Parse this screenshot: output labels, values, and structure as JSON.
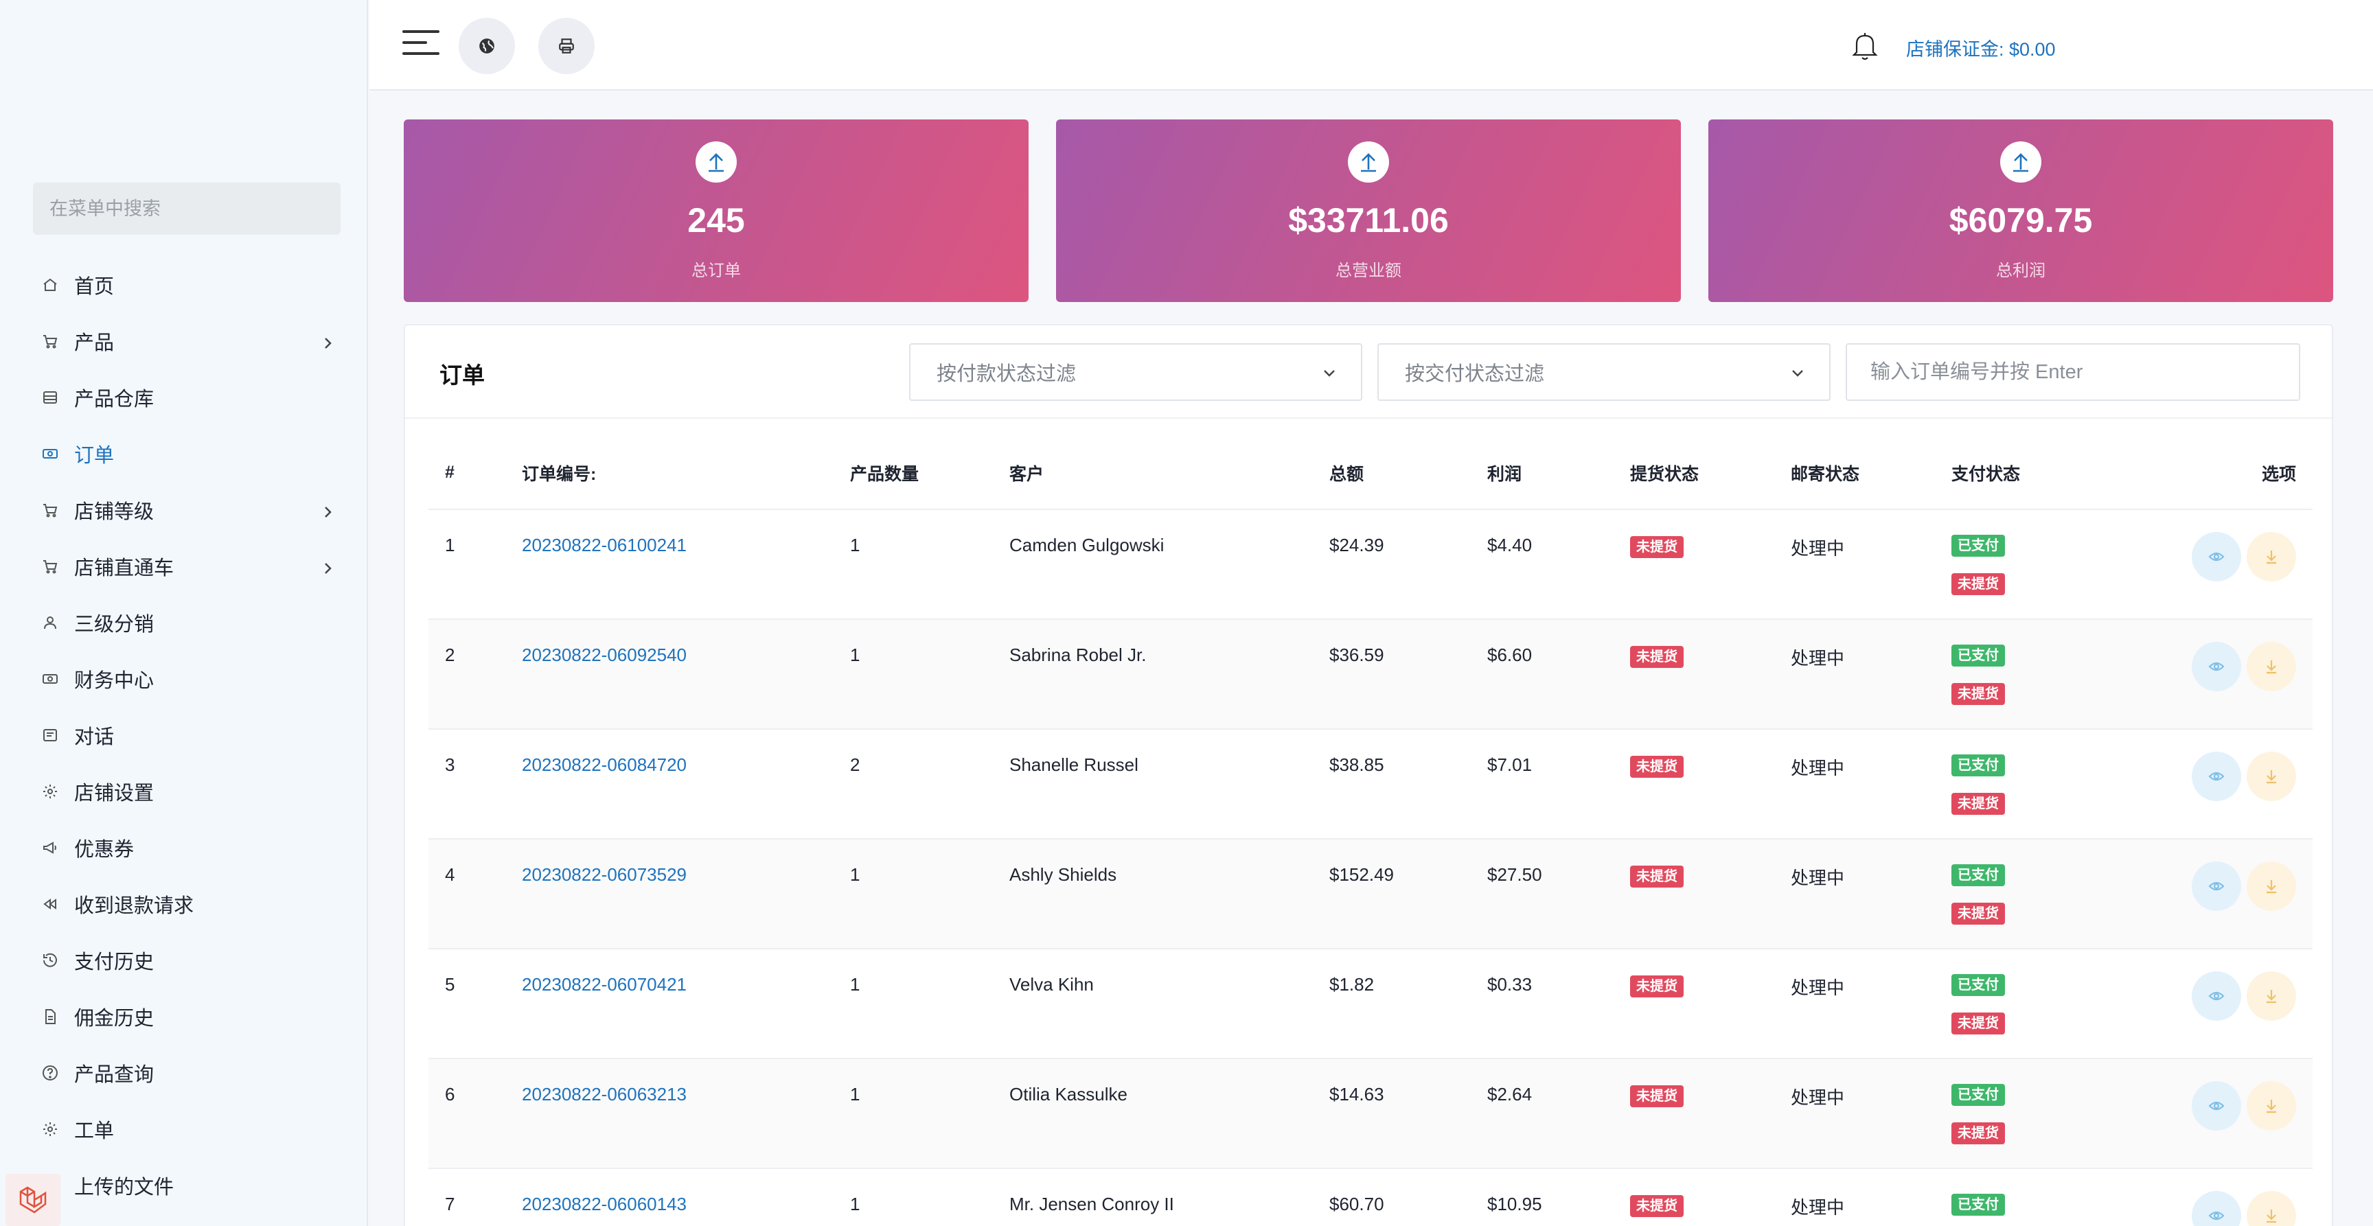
{
  "sidebar": {
    "search_placeholder": "在菜单中搜索",
    "items": [
      {
        "label": "首页",
        "icon": "home-icon",
        "active": false,
        "has_children": false
      },
      {
        "label": "产品",
        "icon": "cart-icon",
        "active": false,
        "has_children": true
      },
      {
        "label": "产品仓库",
        "icon": "warehouse-icon",
        "active": false,
        "has_children": false
      },
      {
        "label": "订单",
        "icon": "money-icon",
        "active": true,
        "has_children": false
      },
      {
        "label": "店铺等级",
        "icon": "cart-icon",
        "active": false,
        "has_children": true
      },
      {
        "label": "店铺直通车",
        "icon": "cart-icon",
        "active": false,
        "has_children": true
      },
      {
        "label": "三级分销",
        "icon": "user-icon",
        "active": false,
        "has_children": false
      },
      {
        "label": "财务中心",
        "icon": "money-icon",
        "active": false,
        "has_children": false
      },
      {
        "label": "对话",
        "icon": "chat-icon",
        "active": false,
        "has_children": false
      },
      {
        "label": "店铺设置",
        "icon": "gear-icon",
        "active": false,
        "has_children": false
      },
      {
        "label": "优惠券",
        "icon": "megaphone-icon",
        "active": false,
        "has_children": false
      },
      {
        "label": "收到退款请求",
        "icon": "rewind-icon",
        "active": false,
        "has_children": false
      },
      {
        "label": "支付历史",
        "icon": "history-icon",
        "active": false,
        "has_children": false
      },
      {
        "label": "佣金历史",
        "icon": "document-icon",
        "active": false,
        "has_children": false
      },
      {
        "label": "产品查询",
        "icon": "help-icon",
        "active": false,
        "has_children": false
      },
      {
        "label": "工单",
        "icon": "gear-icon",
        "active": false,
        "has_children": false
      },
      {
        "label": "上传的文件",
        "icon": "folder-icon",
        "active": false,
        "has_children": false
      }
    ]
  },
  "topbar": {
    "deposit_label": "店铺保证金: $0.00",
    "flag": "china-flag"
  },
  "stats": [
    {
      "value": "245",
      "label": "总订单"
    },
    {
      "value": "$33711.06",
      "label": "总营业额"
    },
    {
      "value": "$6079.75",
      "label": "总利润"
    }
  ],
  "orders": {
    "title": "订单",
    "payment_filter_placeholder": "按付款状态过滤",
    "delivery_filter_placeholder": "按交付状态过滤",
    "search_placeholder": "输入订单编号并按 Enter",
    "columns": [
      "#",
      "订单编号:",
      "产品数量",
      "客户",
      "总额",
      "利润",
      "提货状态",
      "邮寄状态",
      "支付状态",
      "选项"
    ],
    "rows": [
      {
        "num": "1",
        "code": "20230822-06100241",
        "qty": "1",
        "customer": "Camden Gulgowski",
        "total": "$24.39",
        "profit": "$4.40",
        "pickup": "未提货",
        "shipping": "处理中",
        "pay": "已支付",
        "pay2": "未提货"
      },
      {
        "num": "2",
        "code": "20230822-06092540",
        "qty": "1",
        "customer": "Sabrina Robel Jr.",
        "total": "$36.59",
        "profit": "$6.60",
        "pickup": "未提货",
        "shipping": "处理中",
        "pay": "已支付",
        "pay2": "未提货"
      },
      {
        "num": "3",
        "code": "20230822-06084720",
        "qty": "2",
        "customer": "Shanelle Russel",
        "total": "$38.85",
        "profit": "$7.01",
        "pickup": "未提货",
        "shipping": "处理中",
        "pay": "已支付",
        "pay2": "未提货"
      },
      {
        "num": "4",
        "code": "20230822-06073529",
        "qty": "1",
        "customer": "Ashly Shields",
        "total": "$152.49",
        "profit": "$27.50",
        "pickup": "未提货",
        "shipping": "处理中",
        "pay": "已支付",
        "pay2": "未提货"
      },
      {
        "num": "5",
        "code": "20230822-06070421",
        "qty": "1",
        "customer": "Velva Kihn",
        "total": "$1.82",
        "profit": "$0.33",
        "pickup": "未提货",
        "shipping": "处理中",
        "pay": "已支付",
        "pay2": "未提货"
      },
      {
        "num": "6",
        "code": "20230822-06063213",
        "qty": "1",
        "customer": "Otilia Kassulke",
        "total": "$14.63",
        "profit": "$2.64",
        "pickup": "未提货",
        "shipping": "处理中",
        "pay": "已支付",
        "pay2": "未提货"
      },
      {
        "num": "7",
        "code": "20230822-06060143",
        "qty": "1",
        "customer": "Mr. Jensen Conroy II",
        "total": "$60.70",
        "profit": "$10.95",
        "pickup": "未提货",
        "shipping": "处理中",
        "pay": "已支付",
        "pay2": ""
      }
    ]
  }
}
